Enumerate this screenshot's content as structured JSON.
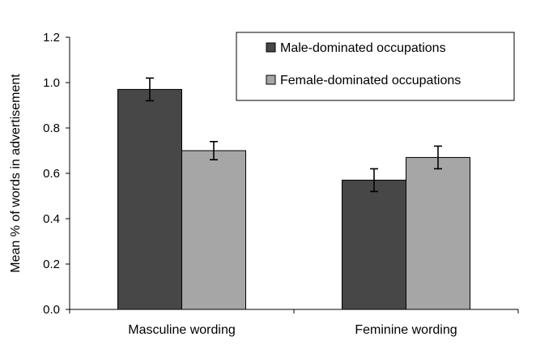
{
  "chart_data": {
    "type": "bar",
    "categories": [
      "Masculine wording",
      "Feminine wording"
    ],
    "series": [
      {
        "name": "Male-dominated occupations",
        "color": "#474747",
        "values": [
          0.97,
          0.57
        ],
        "error": [
          0.05,
          0.05
        ]
      },
      {
        "name": "Female-dominated occupations",
        "color": "#a6a6a6",
        "values": [
          0.7,
          0.67
        ],
        "error": [
          0.04,
          0.05
        ]
      }
    ],
    "ylabel": "Mean % of words in advertisement",
    "ylim": [
      0,
      1.2
    ],
    "yticks": [
      "0.0",
      "0.2",
      "0.4",
      "0.6",
      "0.8",
      "1.0",
      "1.2"
    ],
    "grid": false,
    "legend_position": "top-right"
  }
}
